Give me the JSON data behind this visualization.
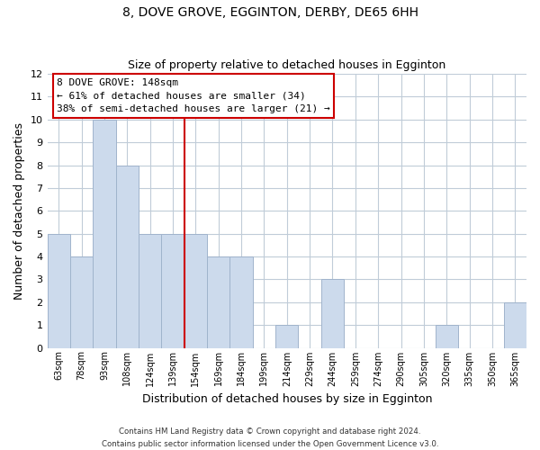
{
  "title": "8, DOVE GROVE, EGGINTON, DERBY, DE65 6HH",
  "subtitle": "Size of property relative to detached houses in Egginton",
  "xlabel": "Distribution of detached houses by size in Egginton",
  "ylabel": "Number of detached properties",
  "bar_labels": [
    "63sqm",
    "78sqm",
    "93sqm",
    "108sqm",
    "124sqm",
    "139sqm",
    "154sqm",
    "169sqm",
    "184sqm",
    "199sqm",
    "214sqm",
    "229sqm",
    "244sqm",
    "259sqm",
    "274sqm",
    "290sqm",
    "305sqm",
    "320sqm",
    "335sqm",
    "350sqm",
    "365sqm"
  ],
  "bar_values": [
    5,
    4,
    10,
    8,
    5,
    5,
    5,
    4,
    4,
    0,
    1,
    0,
    3,
    0,
    0,
    0,
    0,
    1,
    0,
    0,
    2
  ],
  "bar_color": "#ccdaec",
  "bar_edge_color": "#a0b4cc",
  "vline_color": "#cc0000",
  "ylim": [
    0,
    12
  ],
  "yticks": [
    0,
    1,
    2,
    3,
    4,
    5,
    6,
    7,
    8,
    9,
    10,
    11,
    12
  ],
  "annotation_title": "8 DOVE GROVE: 148sqm",
  "annotation_line1": "← 61% of detached houses are smaller (34)",
  "annotation_line2": "38% of semi-detached houses are larger (21) →",
  "footer1": "Contains HM Land Registry data © Crown copyright and database right 2024.",
  "footer2": "Contains public sector information licensed under the Open Government Licence v3.0.",
  "background_color": "#ffffff",
  "grid_color": "#c0ccd8"
}
